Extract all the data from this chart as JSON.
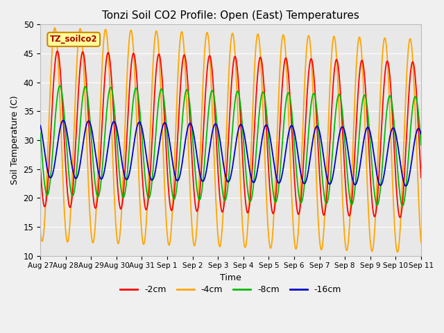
{
  "title": "Tonzi Soil CO2 Profile: Open (East) Temperatures",
  "xlabel": "Time",
  "ylabel": "Soil Temperature (C)",
  "ylim": [
    10,
    50
  ],
  "legend_label": "TZ_soilco2",
  "series_labels": [
    "-2cm",
    "-4cm",
    "-8cm",
    "-16cm"
  ],
  "series_colors": [
    "#ff0000",
    "#ffa500",
    "#00bb00",
    "#0000cc"
  ],
  "tick_labels": [
    "Aug 27",
    "Aug 28",
    "Aug 29",
    "Aug 30",
    "Aug 31",
    "Sep 1",
    "Sep 2",
    "Sep 3",
    "Sep 4",
    "Sep 5",
    "Sep 6",
    "Sep 7",
    "Sep 8",
    "Sep 9",
    "Sep 10",
    "Sep 11"
  ]
}
